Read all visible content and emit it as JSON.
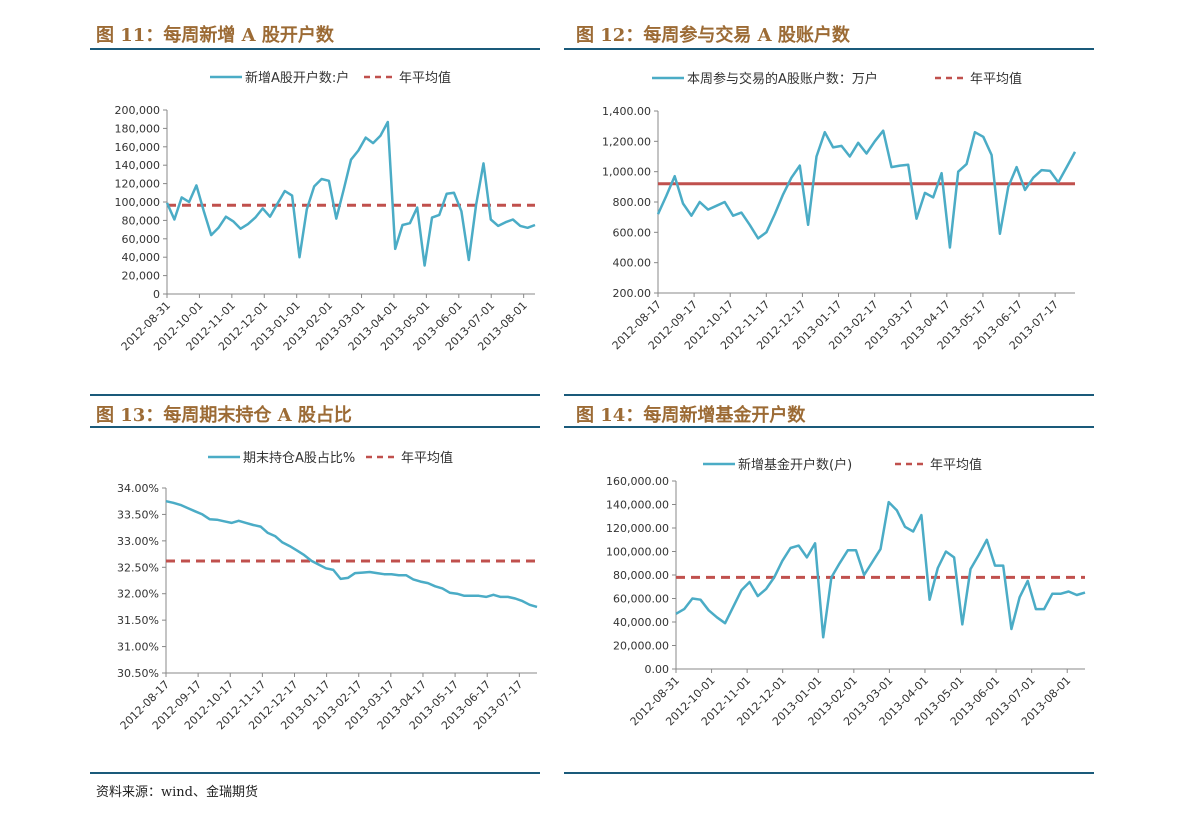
{
  "source": "资料来源：wind、金瑞期货",
  "chart_data": [
    {
      "type": "line",
      "title": "图 11：每周新增 A 股开户数",
      "legend": {
        "series": "新增A股开户数:户",
        "average": "年平均值",
        "placement": "top"
      },
      "yticks": [
        "0",
        "20,000",
        "40,000",
        "60,000",
        "80,000",
        "100,000",
        "120,000",
        "140,000",
        "160,000",
        "180,000",
        "200,000"
      ],
      "ylim": [
        0,
        200000
      ],
      "xticks": [
        "2012-08-31",
        "2012-10-01",
        "2012-11-01",
        "2012-12-01",
        "2013-01-01",
        "2013-02-01",
        "2013-03-01",
        "2013-04-01",
        "2013-05-01",
        "2013-06-01",
        "2013-07-01",
        "2013-08-01"
      ],
      "values": [
        99000,
        81000,
        105000,
        100000,
        118000,
        90000,
        64000,
        72000,
        84000,
        79000,
        71000,
        76000,
        83000,
        93000,
        84000,
        98000,
        112000,
        107000,
        40000,
        92000,
        117000,
        125000,
        123000,
        82000,
        113000,
        146000,
        156000,
        170000,
        164000,
        172000,
        187000,
        49000,
        75000,
        77000,
        94000,
        31000,
        83000,
        86000,
        109000,
        110000,
        90000,
        37000,
        97000,
        142000,
        81000,
        74000,
        78000,
        81000,
        74000,
        72000,
        75000
      ],
      "average": 96500,
      "average_style": "dashed",
      "colors": {
        "series": "#4bacc6",
        "average": "#c0504d"
      }
    },
    {
      "type": "line",
      "title": "图 12：每周参与交易 A 股账户数",
      "legend": {
        "series": "本周参与交易的A股账户数：万户",
        "average": "年平均值",
        "placement": "top"
      },
      "yticks": [
        "200.00",
        "400.00",
        "600.00",
        "800.00",
        "1,000.00",
        "1,200.00",
        "1,400.00"
      ],
      "ylim": [
        200,
        1400
      ],
      "xticks": [
        "2012-08-17",
        "2012-09-17",
        "2012-10-17",
        "2012-11-17",
        "2012-12-17",
        "2013-01-17",
        "2013-02-17",
        "2013-03-17",
        "2013-04-17",
        "2013-05-17",
        "2013-06-17",
        "2013-07-17"
      ],
      "values": [
        720,
        840,
        970,
        790,
        710,
        800,
        750,
        775,
        800,
        710,
        730,
        650,
        560,
        600,
        720,
        850,
        960,
        1040,
        650,
        1100,
        1260,
        1160,
        1170,
        1100,
        1190,
        1120,
        1200,
        1270,
        1030,
        1040,
        1045,
        690,
        860,
        830,
        990,
        500,
        1000,
        1050,
        1260,
        1230,
        1110,
        590,
        900,
        1030,
        880,
        960,
        1010,
        1005,
        930,
        1030,
        1130
      ],
      "average": 920,
      "average_style": "solid",
      "colors": {
        "series": "#4bacc6",
        "average": "#c0504d"
      }
    },
    {
      "type": "line",
      "title": "图 13：每周期末持仓 A 股占比",
      "legend": {
        "series": "期末持仓A股占比%",
        "average": "年平均值",
        "placement": "top"
      },
      "yticks": [
        "30.50%",
        "31.00%",
        "31.50%",
        "32.00%",
        "32.50%",
        "33.00%",
        "33.50%",
        "34.00%"
      ],
      "ylim": [
        30.5,
        34.0
      ],
      "xticks": [
        "2012-08-17",
        "2012-09-17",
        "2012-10-17",
        "2012-11-17",
        "2012-12-17",
        "2013-01-17",
        "2013-02-17",
        "2013-03-17",
        "2013-04-17",
        "2013-05-17",
        "2013-06-17",
        "2013-07-17"
      ],
      "values": [
        33.75,
        33.72,
        33.68,
        33.62,
        33.56,
        33.5,
        33.41,
        33.4,
        33.37,
        33.34,
        33.38,
        33.34,
        33.3,
        33.27,
        33.15,
        33.09,
        32.97,
        32.9,
        32.82,
        32.73,
        32.62,
        32.55,
        32.48,
        32.45,
        32.28,
        32.3,
        32.39,
        32.4,
        32.41,
        32.39,
        32.37,
        32.37,
        32.35,
        32.35,
        32.27,
        32.23,
        32.2,
        32.14,
        32.1,
        32.02,
        32.0,
        31.96,
        31.96,
        31.96,
        31.94,
        31.98,
        31.94,
        31.94,
        31.91,
        31.86,
        31.79,
        31.75
      ],
      "average": 32.62,
      "average_style": "dashed",
      "colors": {
        "series": "#4bacc6",
        "average": "#c0504d"
      }
    },
    {
      "type": "line",
      "title": "图 14：每周新增基金开户数",
      "legend": {
        "series": "新增基金开户数(户)",
        "average": "年平均值",
        "placement": "top"
      },
      "yticks": [
        "0.00",
        "20,000.00",
        "40,000.00",
        "60,000.00",
        "80,000.00",
        "100,000.00",
        "120,000.00",
        "140,000.00",
        "160,000.00"
      ],
      "ylim": [
        0,
        160000
      ],
      "xticks": [
        "2012-08-31",
        "2012-10-01",
        "2012-11-01",
        "2012-12-01",
        "2013-01-01",
        "2013-02-01",
        "2013-03-01",
        "2013-04-01",
        "2013-05-01",
        "2013-06-01",
        "2013-07-01",
        "2013-08-01"
      ],
      "values": [
        47000,
        51000,
        60000,
        59000,
        50000,
        44000,
        39000,
        53000,
        67000,
        74000,
        62000,
        68000,
        78000,
        92000,
        103000,
        105000,
        95000,
        107000,
        27000,
        78000,
        90000,
        101000,
        101000,
        80000,
        91000,
        102000,
        142000,
        135000,
        121000,
        117000,
        131000,
        59000,
        86000,
        100000,
        95000,
        38000,
        85000,
        97000,
        110000,
        88000,
        88000,
        34000,
        61000,
        75000,
        51000,
        51000,
        64000,
        64000,
        66000,
        63000,
        65000
      ],
      "average": 78000,
      "average_style": "dashed",
      "colors": {
        "series": "#4bacc6",
        "average": "#c0504d"
      }
    }
  ]
}
